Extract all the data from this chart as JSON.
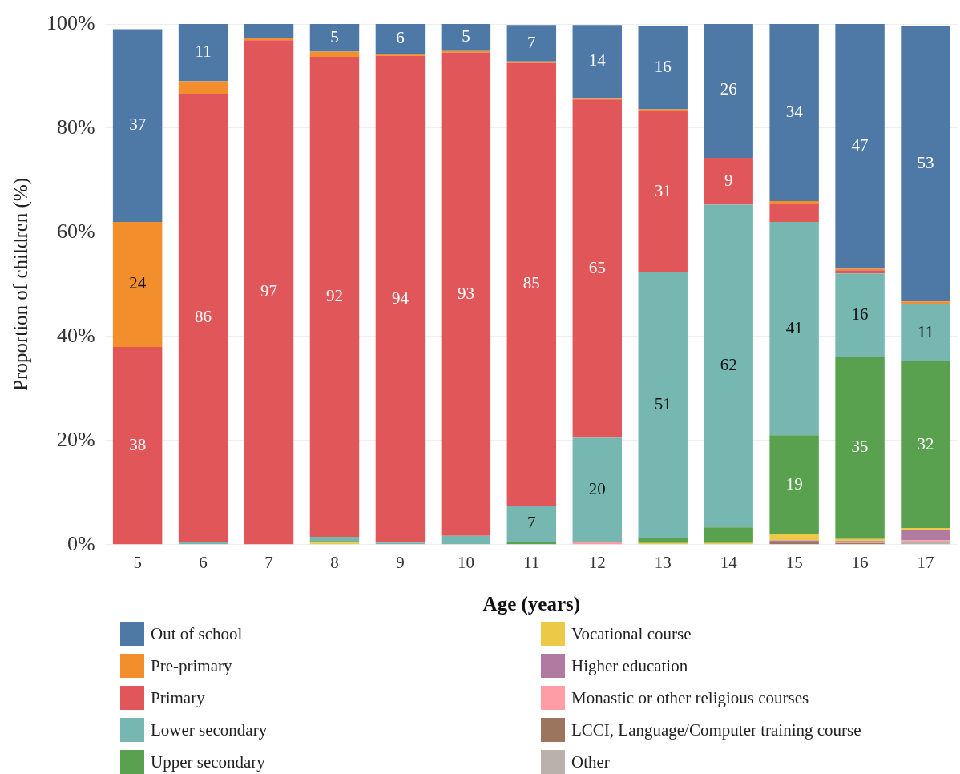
{
  "chart_data": {
    "type": "bar",
    "stacked": true,
    "xlabel": "Age (years)",
    "ylabel": "Proportion of children (%)",
    "categories": [
      "5",
      "6",
      "7",
      "8",
      "9",
      "10",
      "11",
      "12",
      "13",
      "14",
      "15",
      "16",
      "17"
    ],
    "ylim": [
      0,
      100
    ],
    "yticks": [
      {
        "value": 0,
        "label": "0%"
      },
      {
        "value": 20,
        "label": "20%"
      },
      {
        "value": 40,
        "label": "40%"
      },
      {
        "value": 60,
        "label": "60%"
      },
      {
        "value": 80,
        "label": "80%"
      },
      {
        "value": 100,
        "label": "100%"
      }
    ],
    "grid": "y",
    "legend": "bottom",
    "series": [
      {
        "name": "Other",
        "color": "#bab0ac",
        "values": [
          0,
          0,
          0,
          0,
          0,
          0,
          0,
          0,
          0,
          0,
          0,
          0,
          0.5
        ],
        "value_labels": [
          null,
          null,
          null,
          null,
          null,
          null,
          null,
          null,
          null,
          null,
          null,
          null,
          null
        ]
      },
      {
        "name": "LCCI, Language/Computer training course",
        "color": "#9c755f",
        "values": [
          0,
          0,
          0,
          0,
          0,
          0,
          0,
          0,
          0,
          0,
          0.5,
          0.3,
          0
        ],
        "value_labels": [
          null,
          null,
          null,
          null,
          null,
          null,
          null,
          null,
          null,
          null,
          null,
          null,
          null
        ]
      },
      {
        "name": "Monastic or other religious courses",
        "color": "#ff9da7",
        "values": [
          0,
          0,
          0,
          0,
          0,
          0,
          0,
          0.5,
          0,
          0,
          0,
          0.2,
          0.3
        ],
        "value_labels": [
          null,
          null,
          null,
          null,
          null,
          null,
          null,
          null,
          null,
          null,
          null,
          null,
          null
        ]
      },
      {
        "name": "Higher education",
        "color": "#b07aa1",
        "values": [
          0,
          0,
          0,
          0,
          0,
          0,
          0,
          0,
          0,
          0,
          0.3,
          0.2,
          2
        ],
        "value_labels": [
          null,
          null,
          null,
          null,
          null,
          null,
          null,
          null,
          null,
          null,
          null,
          null,
          null
        ]
      },
      {
        "name": "Vocational course",
        "color": "#edc948",
        "values": [
          0,
          0,
          0,
          0.4,
          0,
          0,
          0,
          0,
          0.3,
          0.3,
          1.2,
          0.4,
          0.4
        ],
        "value_labels": [
          null,
          null,
          null,
          null,
          null,
          null,
          null,
          null,
          null,
          null,
          null,
          null,
          null
        ]
      },
      {
        "name": "Upper secondary",
        "color": "#59a14f",
        "values": [
          0,
          0,
          0,
          0.3,
          0,
          0,
          0.5,
          0,
          1,
          3,
          19,
          35,
          32
        ],
        "value_labels": [
          null,
          null,
          null,
          null,
          null,
          null,
          null,
          null,
          null,
          null,
          "19",
          "35",
          "32"
        ]
      },
      {
        "name": "Lower secondary",
        "color": "#76b7b2",
        "values": [
          0,
          0.6,
          0,
          0.8,
          0.4,
          1.7,
          7,
          20,
          51,
          62,
          41,
          16,
          11
        ],
        "value_labels": [
          null,
          null,
          null,
          null,
          null,
          null,
          "7",
          "20",
          "51",
          "62",
          "41",
          "16",
          "11"
        ]
      },
      {
        "name": "Primary",
        "color": "#e15759",
        "values": [
          38,
          86,
          96.9,
          92.2,
          93.5,
          92.8,
          85,
          65,
          31,
          9,
          3.5,
          0.6,
          0
        ],
        "value_labels": [
          "38",
          "86",
          "97",
          "92",
          "94",
          "93",
          "85",
          "65",
          "31",
          "9",
          null,
          null,
          null
        ]
      },
      {
        "name": "Pre-primary",
        "color": "#f28e2b",
        "values": [
          24,
          2.4,
          0.4,
          1,
          0.3,
          0.3,
          0.3,
          0.3,
          0.3,
          0,
          0.5,
          0.3,
          0.5
        ],
        "value_labels": [
          "24",
          null,
          null,
          null,
          null,
          null,
          null,
          null,
          null,
          null,
          null,
          null,
          null
        ]
      },
      {
        "name": "Out of school",
        "color": "#4e79a7",
        "values": [
          37,
          11,
          2.7,
          5.3,
          5.8,
          5.2,
          7,
          14,
          16,
          26,
          34,
          47,
          53
        ],
        "value_labels": [
          "37",
          "11",
          null,
          "5",
          "6",
          "5",
          "7",
          "14",
          "16",
          "26",
          "34",
          "47",
          "53"
        ]
      }
    ]
  }
}
